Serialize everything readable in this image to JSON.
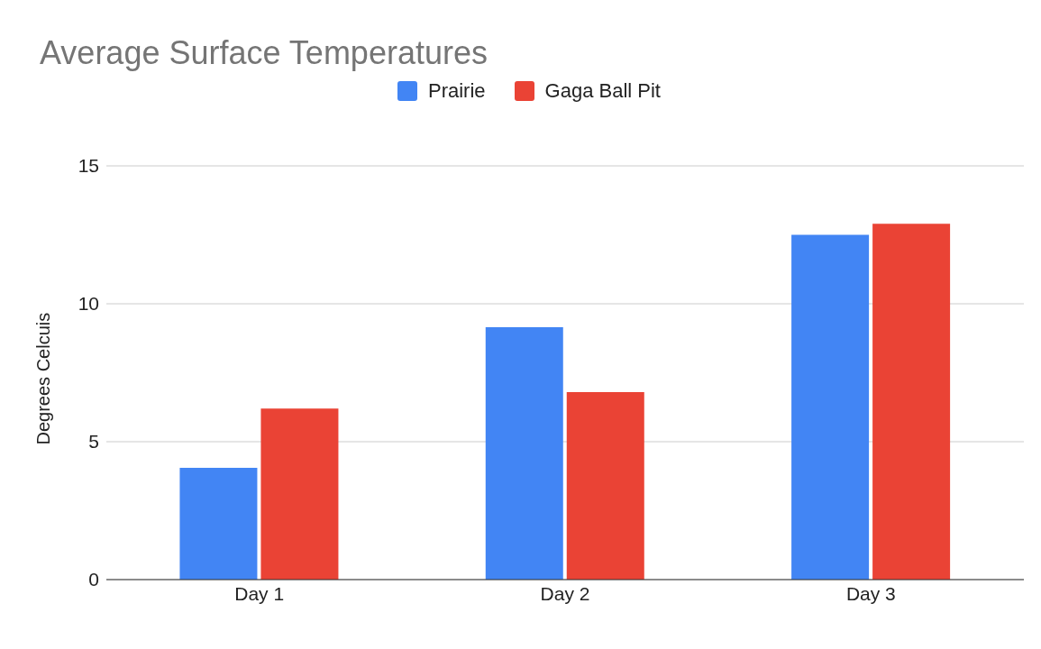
{
  "chart_data": {
    "type": "bar",
    "title": "Average Surface Temperatures",
    "ylabel": "Degrees Celcuis",
    "categories": [
      "Day 1",
      "Day 2",
      "Day 3"
    ],
    "series": [
      {
        "name": "Prairie",
        "color": "#4285f4",
        "values": [
          4.05,
          9.15,
          12.5
        ]
      },
      {
        "name": "Gaga Ball Pit",
        "color": "#ea4335",
        "values": [
          6.2,
          6.8,
          12.9
        ]
      }
    ],
    "ylim": [
      0,
      15
    ],
    "yticks": [
      0,
      5,
      10,
      15
    ],
    "grid": "y",
    "legend": "top"
  }
}
